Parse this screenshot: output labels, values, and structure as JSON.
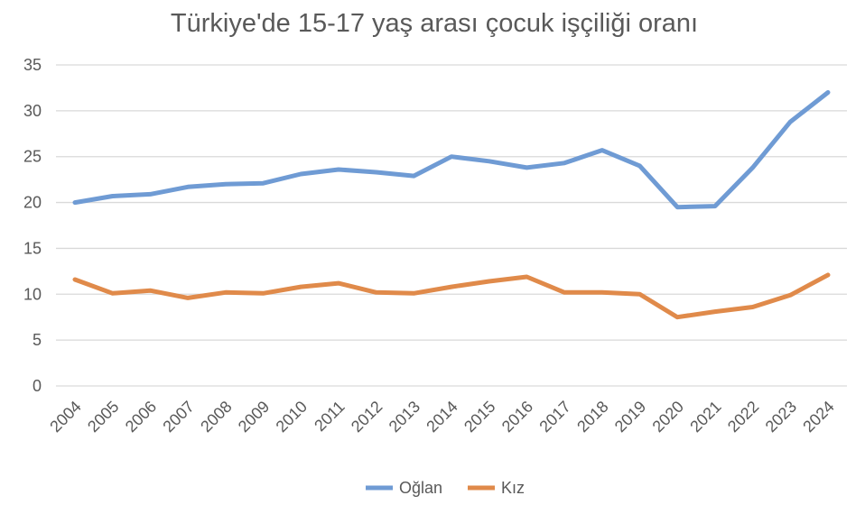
{
  "chart_data": {
    "type": "line",
    "title": "Türkiye'de 15-17 yaş arası çocuk işçiliği oranı",
    "xlabel": "",
    "ylabel": "",
    "x": [
      "2004",
      "2005",
      "2006",
      "2007",
      "2008",
      "2009",
      "2010",
      "2011",
      "2012",
      "2013",
      "2014",
      "2015",
      "2016",
      "2017",
      "2018",
      "2019",
      "2020",
      "2021",
      "2022",
      "2023",
      "2024"
    ],
    "ylim": [
      0,
      35
    ],
    "yticks": [
      "0",
      "5",
      "10",
      "15",
      "20",
      "25",
      "30",
      "35"
    ],
    "grid": true,
    "legend_position": "bottom",
    "series": [
      {
        "name": "Oğlan",
        "color": "#6f9bd4",
        "values": [
          20.0,
          20.7,
          20.9,
          21.7,
          22.0,
          22.1,
          23.1,
          23.6,
          23.3,
          22.9,
          25.0,
          24.5,
          23.8,
          24.3,
          25.7,
          24.0,
          19.5,
          19.6,
          23.8,
          28.8,
          32.0
        ]
      },
      {
        "name": "Kız",
        "color": "#e08a4a",
        "values": [
          11.6,
          10.1,
          10.4,
          9.6,
          10.2,
          10.1,
          10.8,
          11.2,
          10.2,
          10.1,
          10.8,
          11.4,
          11.9,
          10.2,
          10.2,
          10.0,
          7.5,
          8.1,
          8.6,
          9.9,
          12.1
        ]
      }
    ]
  }
}
